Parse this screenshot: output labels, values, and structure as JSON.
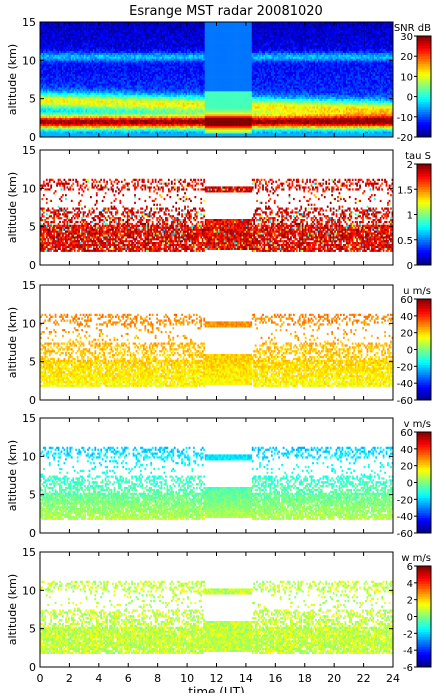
{
  "chart_data": {
    "type": "heatmap",
    "title": "Esrange MST radar 20081020",
    "xlabel": "time (UT)",
    "xlim": [
      0,
      24
    ],
    "xticks": [
      "0",
      "2",
      "4",
      "6",
      "8",
      "10",
      "12",
      "14",
      "16",
      "18",
      "20",
      "22",
      "24"
    ],
    "panels": [
      {
        "quantity": "SNR",
        "colorbar_label": "SNR dB",
        "ylabel": "altitude (km)",
        "ylim": [
          0,
          15
        ],
        "yticks": [
          "0",
          "5",
          "10",
          "15"
        ],
        "clim": [
          -20,
          30
        ],
        "cbar_ticks": [
          "-20",
          "-10",
          "0",
          "10",
          "20",
          "30"
        ],
        "coverage": "full",
        "features": {
          "background": -10,
          "peak_layer_altitude_km": 2,
          "peak_value": 30,
          "secondary_layer_altitude_km": 4.5
        }
      },
      {
        "quantity": "tau",
        "colorbar_label": "tau S",
        "ylabel": "altitude (km)",
        "ylim": [
          0,
          15
        ],
        "yticks": [
          "0",
          "5",
          "10",
          "15"
        ],
        "clim": [
          0,
          2
        ],
        "cbar_ticks": [
          "0",
          "0.5",
          "1",
          "1.5",
          "2"
        ],
        "coverage": "sparse",
        "features": {
          "dominant_value": 2,
          "data_altitude_range_km": [
            2,
            11
          ]
        }
      },
      {
        "quantity": "u",
        "colorbar_label": "u m/s",
        "ylabel": "altitude (km)",
        "ylim": [
          0,
          15
        ],
        "yticks": [
          "0",
          "5",
          "10",
          "15"
        ],
        "clim": [
          -60,
          60
        ],
        "cbar_ticks": [
          "-60",
          "-40",
          "-20",
          "0",
          "20",
          "40",
          "60"
        ],
        "coverage": "sparse",
        "features": {
          "typical_low_altitude": 15,
          "typical_high_altitude": 30
        }
      },
      {
        "quantity": "v",
        "colorbar_label": "v m/s",
        "ylabel": "altitude (km)",
        "ylim": [
          0,
          15
        ],
        "yticks": [
          "0",
          "5",
          "10",
          "15"
        ],
        "clim": [
          -60,
          60
        ],
        "cbar_ticks": [
          "-60",
          "-40",
          "-20",
          "0",
          "20",
          "40",
          "60"
        ],
        "coverage": "sparse",
        "features": {
          "typical_low_altitude": 5,
          "typical_high_altitude": -20
        }
      },
      {
        "quantity": "w",
        "colorbar_label": "w m/s",
        "ylabel": "altitude (km)",
        "ylim": [
          0,
          15
        ],
        "yticks": [
          "0",
          "5",
          "10",
          "15"
        ],
        "clim": [
          -6,
          6
        ],
        "cbar_ticks": [
          "-6",
          "-4",
          "-2",
          "0",
          "2",
          "4",
          "6"
        ],
        "coverage": "sparse",
        "features": {
          "typical_value": 1
        }
      }
    ],
    "colormap": "jet",
    "colors": {
      "background": "#ffffff",
      "axis": "#000000"
    }
  }
}
